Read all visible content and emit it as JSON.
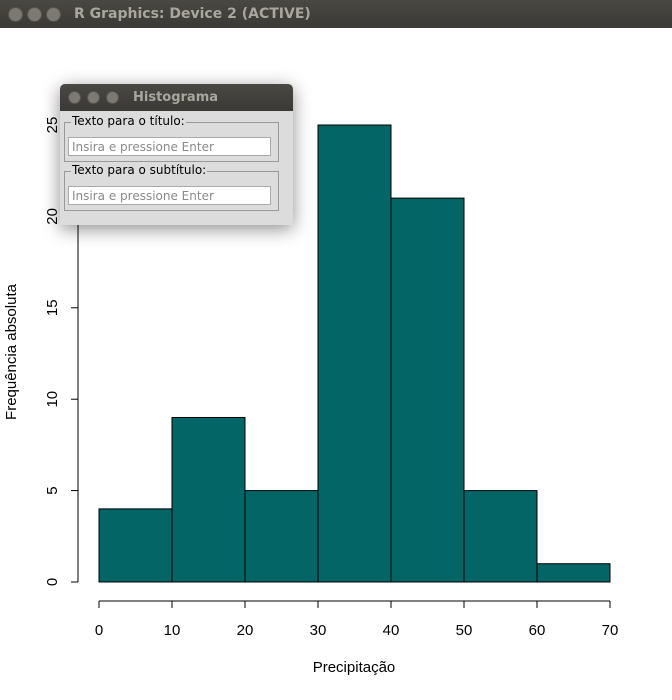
{
  "window": {
    "title": "R Graphics: Device 2 (ACTIVE)"
  },
  "dialog": {
    "title": "Histograma",
    "fields": [
      {
        "legend": "Texto para o título:",
        "placeholder": "Insira e pressione Enter"
      },
      {
        "legend": "Texto para o subtítulo:",
        "placeholder": "Insira e pressione Enter"
      }
    ]
  },
  "chart_data": {
    "type": "histogram",
    "xlabel": "Precipitação",
    "ylabel": "Frequência absoluta",
    "bins": [
      0,
      10,
      20,
      30,
      40,
      50,
      60,
      70
    ],
    "values": [
      4,
      9,
      5,
      25,
      21,
      5,
      1
    ],
    "color": "#036565",
    "xlim": [
      0,
      70
    ],
    "ylim": [
      0,
      25
    ],
    "xticks": [
      0,
      10,
      20,
      30,
      40,
      50,
      60,
      70
    ],
    "yticks": [
      0,
      5,
      10,
      15,
      20,
      25
    ]
  }
}
